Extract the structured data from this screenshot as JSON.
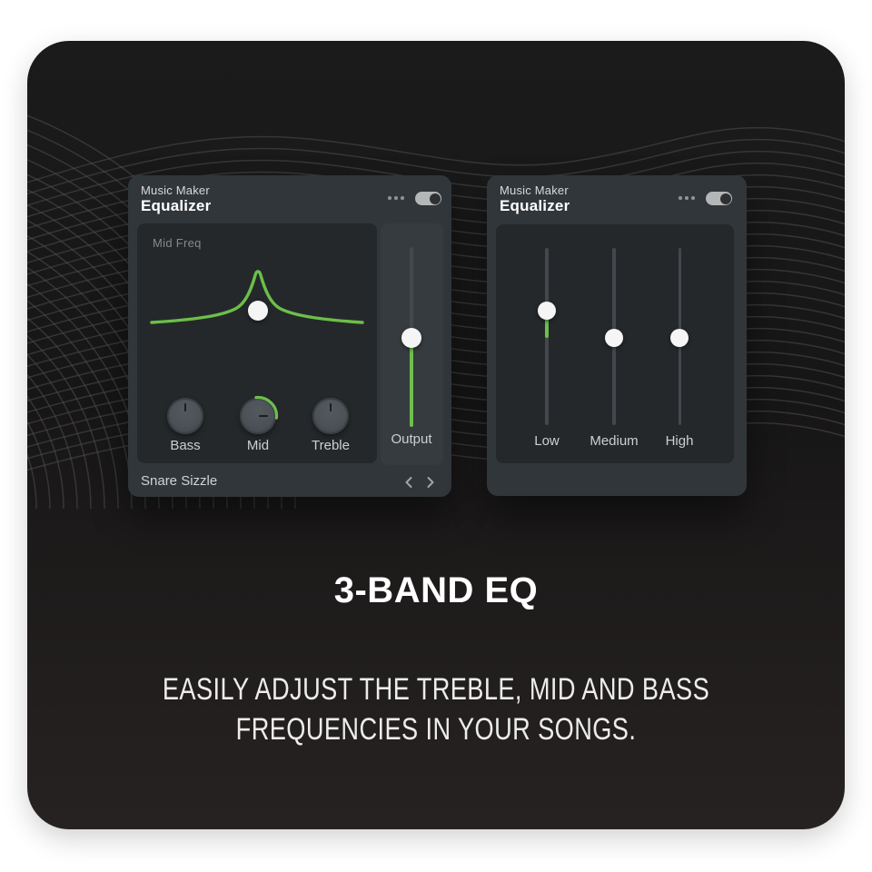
{
  "card": {
    "panels": [
      {
        "app": "Music Maker",
        "title": "Equalizer",
        "menu_icon": "ellipsis-icon",
        "toggle_state": "on",
        "screen_label": "Mid Freq",
        "knobs": [
          {
            "label": "Bass"
          },
          {
            "label": "Mid",
            "highlight": true
          },
          {
            "label": "Treble"
          }
        ],
        "output_label": "Output",
        "preset_name": "Snare Sizzle",
        "prev_icon": "chevron-left-icon",
        "next_icon": "chevron-right-icon"
      },
      {
        "app": "Music Maker",
        "title": "Equalizer",
        "menu_icon": "ellipsis-icon",
        "toggle_state": "on",
        "sliders": [
          {
            "label": "Low"
          },
          {
            "label": "Medium"
          },
          {
            "label": "High"
          }
        ]
      }
    ],
    "headline": "3-BAND EQ",
    "subtitle_lines": [
      "EASILY ADJUST THE TREBLE, MID AND BASS",
      "FREQUENCIES IN YOUR SONGS."
    ],
    "colors": {
      "accent_green": "#6CBF4A",
      "panel_bg": "#31363A",
      "screen_bg": "#25282B",
      "card_bg": "#1A1A1A",
      "toggle_pill": "#B5B6B7"
    }
  }
}
